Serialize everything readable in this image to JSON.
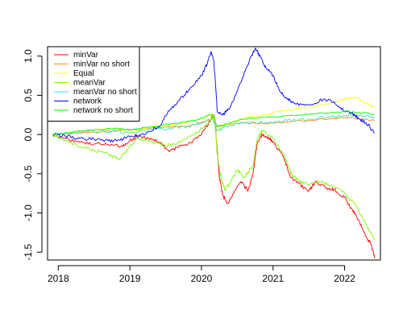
{
  "chart_data": {
    "type": "line",
    "title": "",
    "xlabel": "",
    "ylabel": "",
    "xlim": [
      2017.85,
      2022.5
    ],
    "ylim": [
      -1.6,
      1.12
    ],
    "xticks": [
      "2018",
      "2019",
      "2020",
      "2021",
      "2022"
    ],
    "yticks": [
      "1.0",
      "0.5",
      "0.0",
      "-0.5",
      "-1.0",
      "-1.5"
    ],
    "grid": false,
    "legend_position": "top-left",
    "x_tick_values": [
      2018,
      2019,
      2020,
      2021,
      2022
    ],
    "y_tick_values": [
      1.0,
      0.5,
      0.0,
      -0.5,
      -1.0,
      -1.5
    ],
    "series": [
      {
        "name": "minVar",
        "color": "#ff0000",
        "points": [
          [
            2017.92,
            0.0
          ],
          [
            2018.1,
            -0.05
          ],
          [
            2018.3,
            -0.1
          ],
          [
            2018.5,
            -0.12
          ],
          [
            2018.7,
            -0.13
          ],
          [
            2018.9,
            -0.15
          ],
          [
            2019.0,
            -0.08
          ],
          [
            2019.1,
            -0.02
          ],
          [
            2019.3,
            -0.05
          ],
          [
            2019.45,
            -0.12
          ],
          [
            2019.55,
            -0.22
          ],
          [
            2019.7,
            -0.15
          ],
          [
            2019.85,
            -0.1
          ],
          [
            2020.0,
            0.0
          ],
          [
            2020.1,
            0.15
          ],
          [
            2020.18,
            0.25
          ],
          [
            2020.22,
            -0.2
          ],
          [
            2020.25,
            -0.55
          ],
          [
            2020.3,
            -0.78
          ],
          [
            2020.37,
            -0.88
          ],
          [
            2020.45,
            -0.75
          ],
          [
            2020.55,
            -0.6
          ],
          [
            2020.65,
            -0.72
          ],
          [
            2020.72,
            -0.5
          ],
          [
            2020.78,
            -0.1
          ],
          [
            2020.85,
            0.0
          ],
          [
            2020.95,
            -0.05
          ],
          [
            2021.0,
            -0.1
          ],
          [
            2021.15,
            -0.3
          ],
          [
            2021.25,
            -0.55
          ],
          [
            2021.35,
            -0.62
          ],
          [
            2021.5,
            -0.72
          ],
          [
            2021.6,
            -0.6
          ],
          [
            2021.75,
            -0.68
          ],
          [
            2021.85,
            -0.7
          ],
          [
            2022.0,
            -0.8
          ],
          [
            2022.1,
            -0.95
          ],
          [
            2022.2,
            -1.1
          ],
          [
            2022.3,
            -1.3
          ],
          [
            2022.37,
            -1.4
          ],
          [
            2022.42,
            -1.58
          ]
        ]
      },
      {
        "name": "minVar no short",
        "color": "#ff8c00",
        "points": [
          [
            2017.92,
            0.0
          ],
          [
            2018.2,
            0.02
          ],
          [
            2018.5,
            0.03
          ],
          [
            2018.8,
            0.05
          ],
          [
            2019.0,
            0.06
          ],
          [
            2019.3,
            0.08
          ],
          [
            2019.6,
            0.1
          ],
          [
            2019.9,
            0.12
          ],
          [
            2020.15,
            0.2
          ],
          [
            2020.22,
            0.1
          ],
          [
            2020.3,
            0.12
          ],
          [
            2020.6,
            0.15
          ],
          [
            2020.9,
            0.14
          ],
          [
            2021.2,
            0.16
          ],
          [
            2021.5,
            0.18
          ],
          [
            2021.8,
            0.2
          ],
          [
            2022.0,
            0.22
          ],
          [
            2022.2,
            0.2
          ],
          [
            2022.42,
            0.18
          ]
        ]
      },
      {
        "name": "Equal",
        "color": "#ffff00",
        "points": [
          [
            2017.92,
            0.0
          ],
          [
            2018.2,
            0.03
          ],
          [
            2018.5,
            0.06
          ],
          [
            2018.8,
            0.08
          ],
          [
            2019.0,
            0.02
          ],
          [
            2019.3,
            0.1
          ],
          [
            2019.6,
            0.12
          ],
          [
            2019.9,
            0.18
          ],
          [
            2020.15,
            0.25
          ],
          [
            2020.22,
            0.05
          ],
          [
            2020.3,
            0.1
          ],
          [
            2020.6,
            0.22
          ],
          [
            2020.9,
            0.25
          ],
          [
            2021.1,
            0.3
          ],
          [
            2021.3,
            0.32
          ],
          [
            2021.5,
            0.35
          ],
          [
            2021.7,
            0.38
          ],
          [
            2021.9,
            0.42
          ],
          [
            2022.0,
            0.45
          ],
          [
            2022.15,
            0.48
          ],
          [
            2022.3,
            0.4
          ],
          [
            2022.42,
            0.35
          ]
        ]
      },
      {
        "name": "meanVar",
        "color": "#7cfc00",
        "points": [
          [
            2017.92,
            0.0
          ],
          [
            2018.1,
            -0.08
          ],
          [
            2018.3,
            -0.15
          ],
          [
            2018.5,
            -0.2
          ],
          [
            2018.7,
            -0.25
          ],
          [
            2018.85,
            -0.32
          ],
          [
            2019.0,
            -0.15
          ],
          [
            2019.1,
            -0.05
          ],
          [
            2019.3,
            -0.08
          ],
          [
            2019.5,
            -0.15
          ],
          [
            2019.7,
            -0.1
          ],
          [
            2019.9,
            0.0
          ],
          [
            2020.1,
            0.15
          ],
          [
            2020.18,
            0.25
          ],
          [
            2020.22,
            -0.25
          ],
          [
            2020.27,
            -0.55
          ],
          [
            2020.33,
            -0.7
          ],
          [
            2020.4,
            -0.62
          ],
          [
            2020.5,
            -0.45
          ],
          [
            2020.6,
            -0.55
          ],
          [
            2020.72,
            -0.4
          ],
          [
            2020.78,
            -0.05
          ],
          [
            2020.85,
            0.05
          ],
          [
            2021.0,
            -0.05
          ],
          [
            2021.15,
            -0.25
          ],
          [
            2021.25,
            -0.5
          ],
          [
            2021.35,
            -0.58
          ],
          [
            2021.5,
            -0.65
          ],
          [
            2021.65,
            -0.6
          ],
          [
            2021.8,
            -0.65
          ],
          [
            2022.0,
            -0.75
          ],
          [
            2022.15,
            -0.9
          ],
          [
            2022.3,
            -1.15
          ],
          [
            2022.42,
            -1.35
          ]
        ]
      },
      {
        "name": "meanVar no short",
        "color": "#40e0d0",
        "points": [
          [
            2017.92,
            0.0
          ],
          [
            2018.2,
            0.02
          ],
          [
            2018.5,
            0.04
          ],
          [
            2018.8,
            0.04
          ],
          [
            2019.0,
            0.02
          ],
          [
            2019.3,
            0.06
          ],
          [
            2019.6,
            0.08
          ],
          [
            2019.9,
            0.12
          ],
          [
            2020.15,
            0.2
          ],
          [
            2020.22,
            0.05
          ],
          [
            2020.35,
            0.1
          ],
          [
            2020.6,
            0.15
          ],
          [
            2020.9,
            0.15
          ],
          [
            2021.2,
            0.18
          ],
          [
            2021.5,
            0.2
          ],
          [
            2021.8,
            0.22
          ],
          [
            2022.0,
            0.24
          ],
          [
            2022.2,
            0.24
          ],
          [
            2022.42,
            0.22
          ]
        ]
      },
      {
        "name": "network",
        "color": "#0000ff",
        "points": [
          [
            2017.92,
            0.0
          ],
          [
            2018.1,
            -0.02
          ],
          [
            2018.3,
            -0.05
          ],
          [
            2018.5,
            -0.06
          ],
          [
            2018.7,
            -0.08
          ],
          [
            2018.85,
            -0.07
          ],
          [
            2019.0,
            -0.03
          ],
          [
            2019.2,
            0.0
          ],
          [
            2019.4,
            0.1
          ],
          [
            2019.55,
            0.3
          ],
          [
            2019.7,
            0.45
          ],
          [
            2019.85,
            0.6
          ],
          [
            2020.0,
            0.75
          ],
          [
            2020.08,
            0.9
          ],
          [
            2020.13,
            1.05
          ],
          [
            2020.17,
            0.95
          ],
          [
            2020.2,
            0.6
          ],
          [
            2020.22,
            0.3
          ],
          [
            2020.3,
            0.25
          ],
          [
            2020.4,
            0.35
          ],
          [
            2020.5,
            0.55
          ],
          [
            2020.6,
            0.8
          ],
          [
            2020.7,
            1.0
          ],
          [
            2020.75,
            1.1
          ],
          [
            2020.82,
            1.0
          ],
          [
            2020.9,
            0.85
          ],
          [
            2021.0,
            0.75
          ],
          [
            2021.1,
            0.55
          ],
          [
            2021.2,
            0.45
          ],
          [
            2021.3,
            0.4
          ],
          [
            2021.5,
            0.38
          ],
          [
            2021.7,
            0.45
          ],
          [
            2021.85,
            0.42
          ],
          [
            2022.0,
            0.3
          ],
          [
            2022.1,
            0.28
          ],
          [
            2022.2,
            0.2
          ],
          [
            2022.3,
            0.15
          ],
          [
            2022.42,
            0.02
          ]
        ]
      },
      {
        "name": "network no short",
        "color": "#00ff00",
        "points": [
          [
            2017.92,
            0.0
          ],
          [
            2018.2,
            0.03
          ],
          [
            2018.5,
            0.06
          ],
          [
            2018.8,
            0.08
          ],
          [
            2019.0,
            0.06
          ],
          [
            2019.3,
            0.1
          ],
          [
            2019.6,
            0.14
          ],
          [
            2019.9,
            0.18
          ],
          [
            2020.15,
            0.26
          ],
          [
            2020.22,
            0.1
          ],
          [
            2020.4,
            0.15
          ],
          [
            2020.6,
            0.2
          ],
          [
            2020.9,
            0.22
          ],
          [
            2021.2,
            0.24
          ],
          [
            2021.5,
            0.26
          ],
          [
            2021.8,
            0.28
          ],
          [
            2022.0,
            0.3
          ],
          [
            2022.2,
            0.28
          ],
          [
            2022.42,
            0.26
          ]
        ]
      }
    ]
  }
}
